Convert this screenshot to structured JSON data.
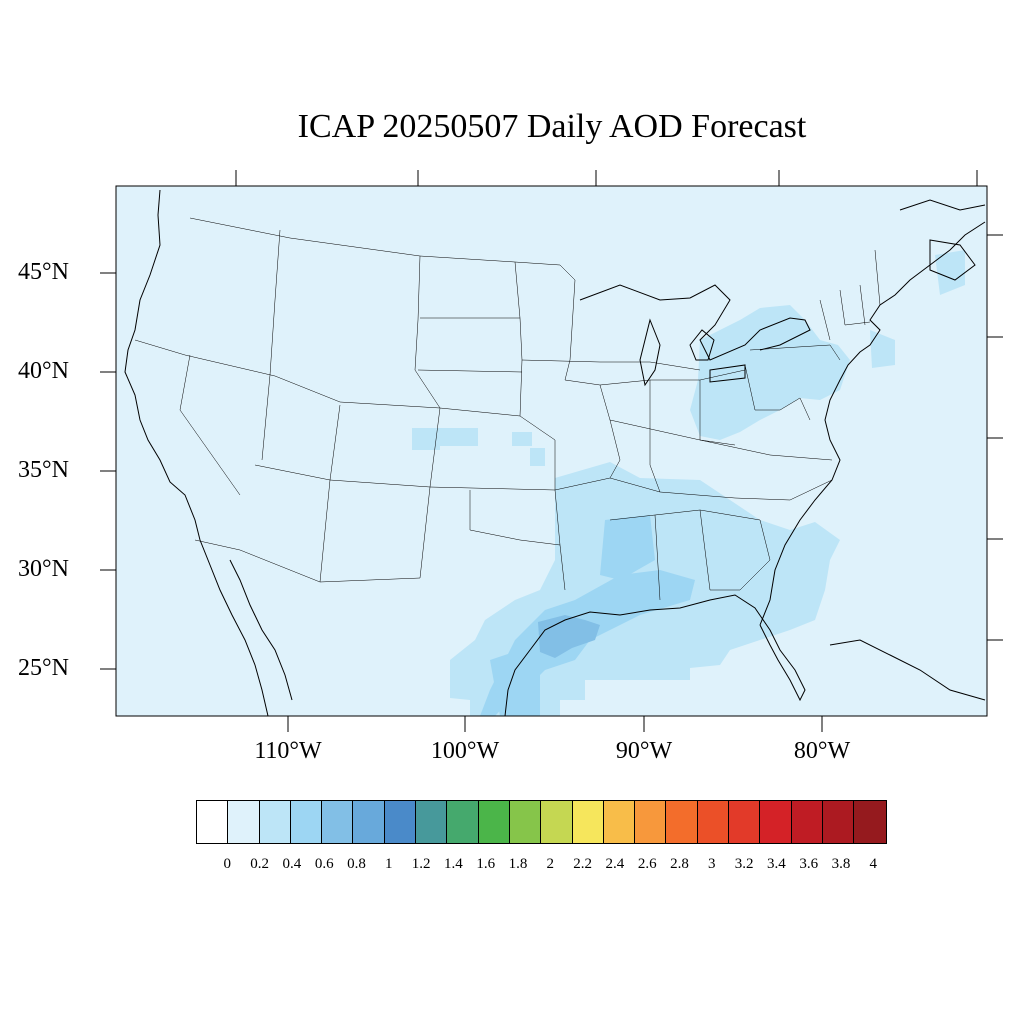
{
  "title": "ICAP 20250507 Daily AOD Forecast",
  "lat_labels": [
    "45°N",
    "40°N",
    "35°N",
    "30°N",
    "25°N"
  ],
  "lon_labels": [
    "110°W",
    "100°W",
    "90°W",
    "80°W"
  ],
  "colorbar": {
    "colors": [
      "#ffffff",
      "#dff2fb",
      "#bde5f7",
      "#9dd6f3",
      "#82bfe6",
      "#68a9db",
      "#4a8ac9",
      "#47999b",
      "#45a96d",
      "#4bb549",
      "#86c54a",
      "#c5d752",
      "#f6e65c",
      "#f8bd49",
      "#f7983c",
      "#f36d2b",
      "#eb5028",
      "#e23a29",
      "#d42227",
      "#bf1c24",
      "#ac1a21",
      "#951a1e"
    ],
    "tick_labels": [
      "0",
      "0.2",
      "0.4",
      "0.6",
      "0.8",
      "1",
      "1.2",
      "1.4",
      "1.6",
      "1.8",
      "2",
      "2.2",
      "2.4",
      "2.6",
      "2.8",
      "3",
      "3.2",
      "3.4",
      "3.6",
      "3.8",
      "4"
    ]
  },
  "map": {
    "background_color": "#dff2fb",
    "aod_level_colors": {
      "low": "#bde5f7",
      "moderate": "#9dd6f3",
      "high": "#82bfe6"
    }
  }
}
